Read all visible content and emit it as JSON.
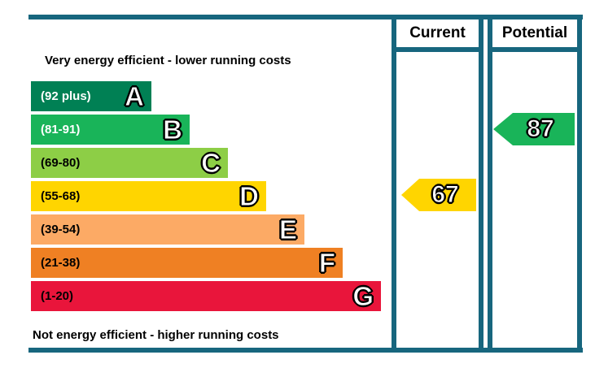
{
  "header": {
    "current": "Current",
    "potential": "Potential"
  },
  "captions": {
    "top": "Very energy efficient - lower running costs",
    "bottom": "Not energy efficient - higher running costs"
  },
  "bands": [
    {
      "letter": "A",
      "range": "(92 plus)",
      "color": "#008054"
    },
    {
      "letter": "B",
      "range": "(81-91)",
      "color": "#19b459"
    },
    {
      "letter": "C",
      "range": "(69-80)",
      "color": "#8dce46"
    },
    {
      "letter": "D",
      "range": "(55-68)",
      "color": "#ffd500"
    },
    {
      "letter": "E",
      "range": "(39-54)",
      "color": "#fcaa65"
    },
    {
      "letter": "F",
      "range": "(21-38)",
      "color": "#ef8023"
    },
    {
      "letter": "G",
      "range": "(1-20)",
      "color": "#e9153b"
    }
  ],
  "ratings": {
    "current": {
      "value": "67",
      "band": "D",
      "color": "#ffd500"
    },
    "potential": {
      "value": "87",
      "band": "B",
      "color": "#19b459"
    }
  },
  "colors": {
    "border": "#17667e"
  },
  "chart_data": {
    "type": "bar",
    "categories": [
      "A",
      "B",
      "C",
      "D",
      "E",
      "F",
      "G"
    ],
    "ranges": [
      "92 plus",
      "81-91",
      "69-80",
      "55-68",
      "39-54",
      "21-38",
      "1-20"
    ],
    "band_colors": [
      "#008054",
      "#19b459",
      "#8dce46",
      "#ffd500",
      "#fcaa65",
      "#ef8023",
      "#e9153b"
    ],
    "columns": [
      "Current",
      "Potential"
    ],
    "current_rating": 67,
    "current_band": "D",
    "potential_rating": 87,
    "potential_band": "B",
    "top_caption": "Very energy efficient - lower running costs",
    "bottom_caption": "Not energy efficient - higher running costs"
  }
}
